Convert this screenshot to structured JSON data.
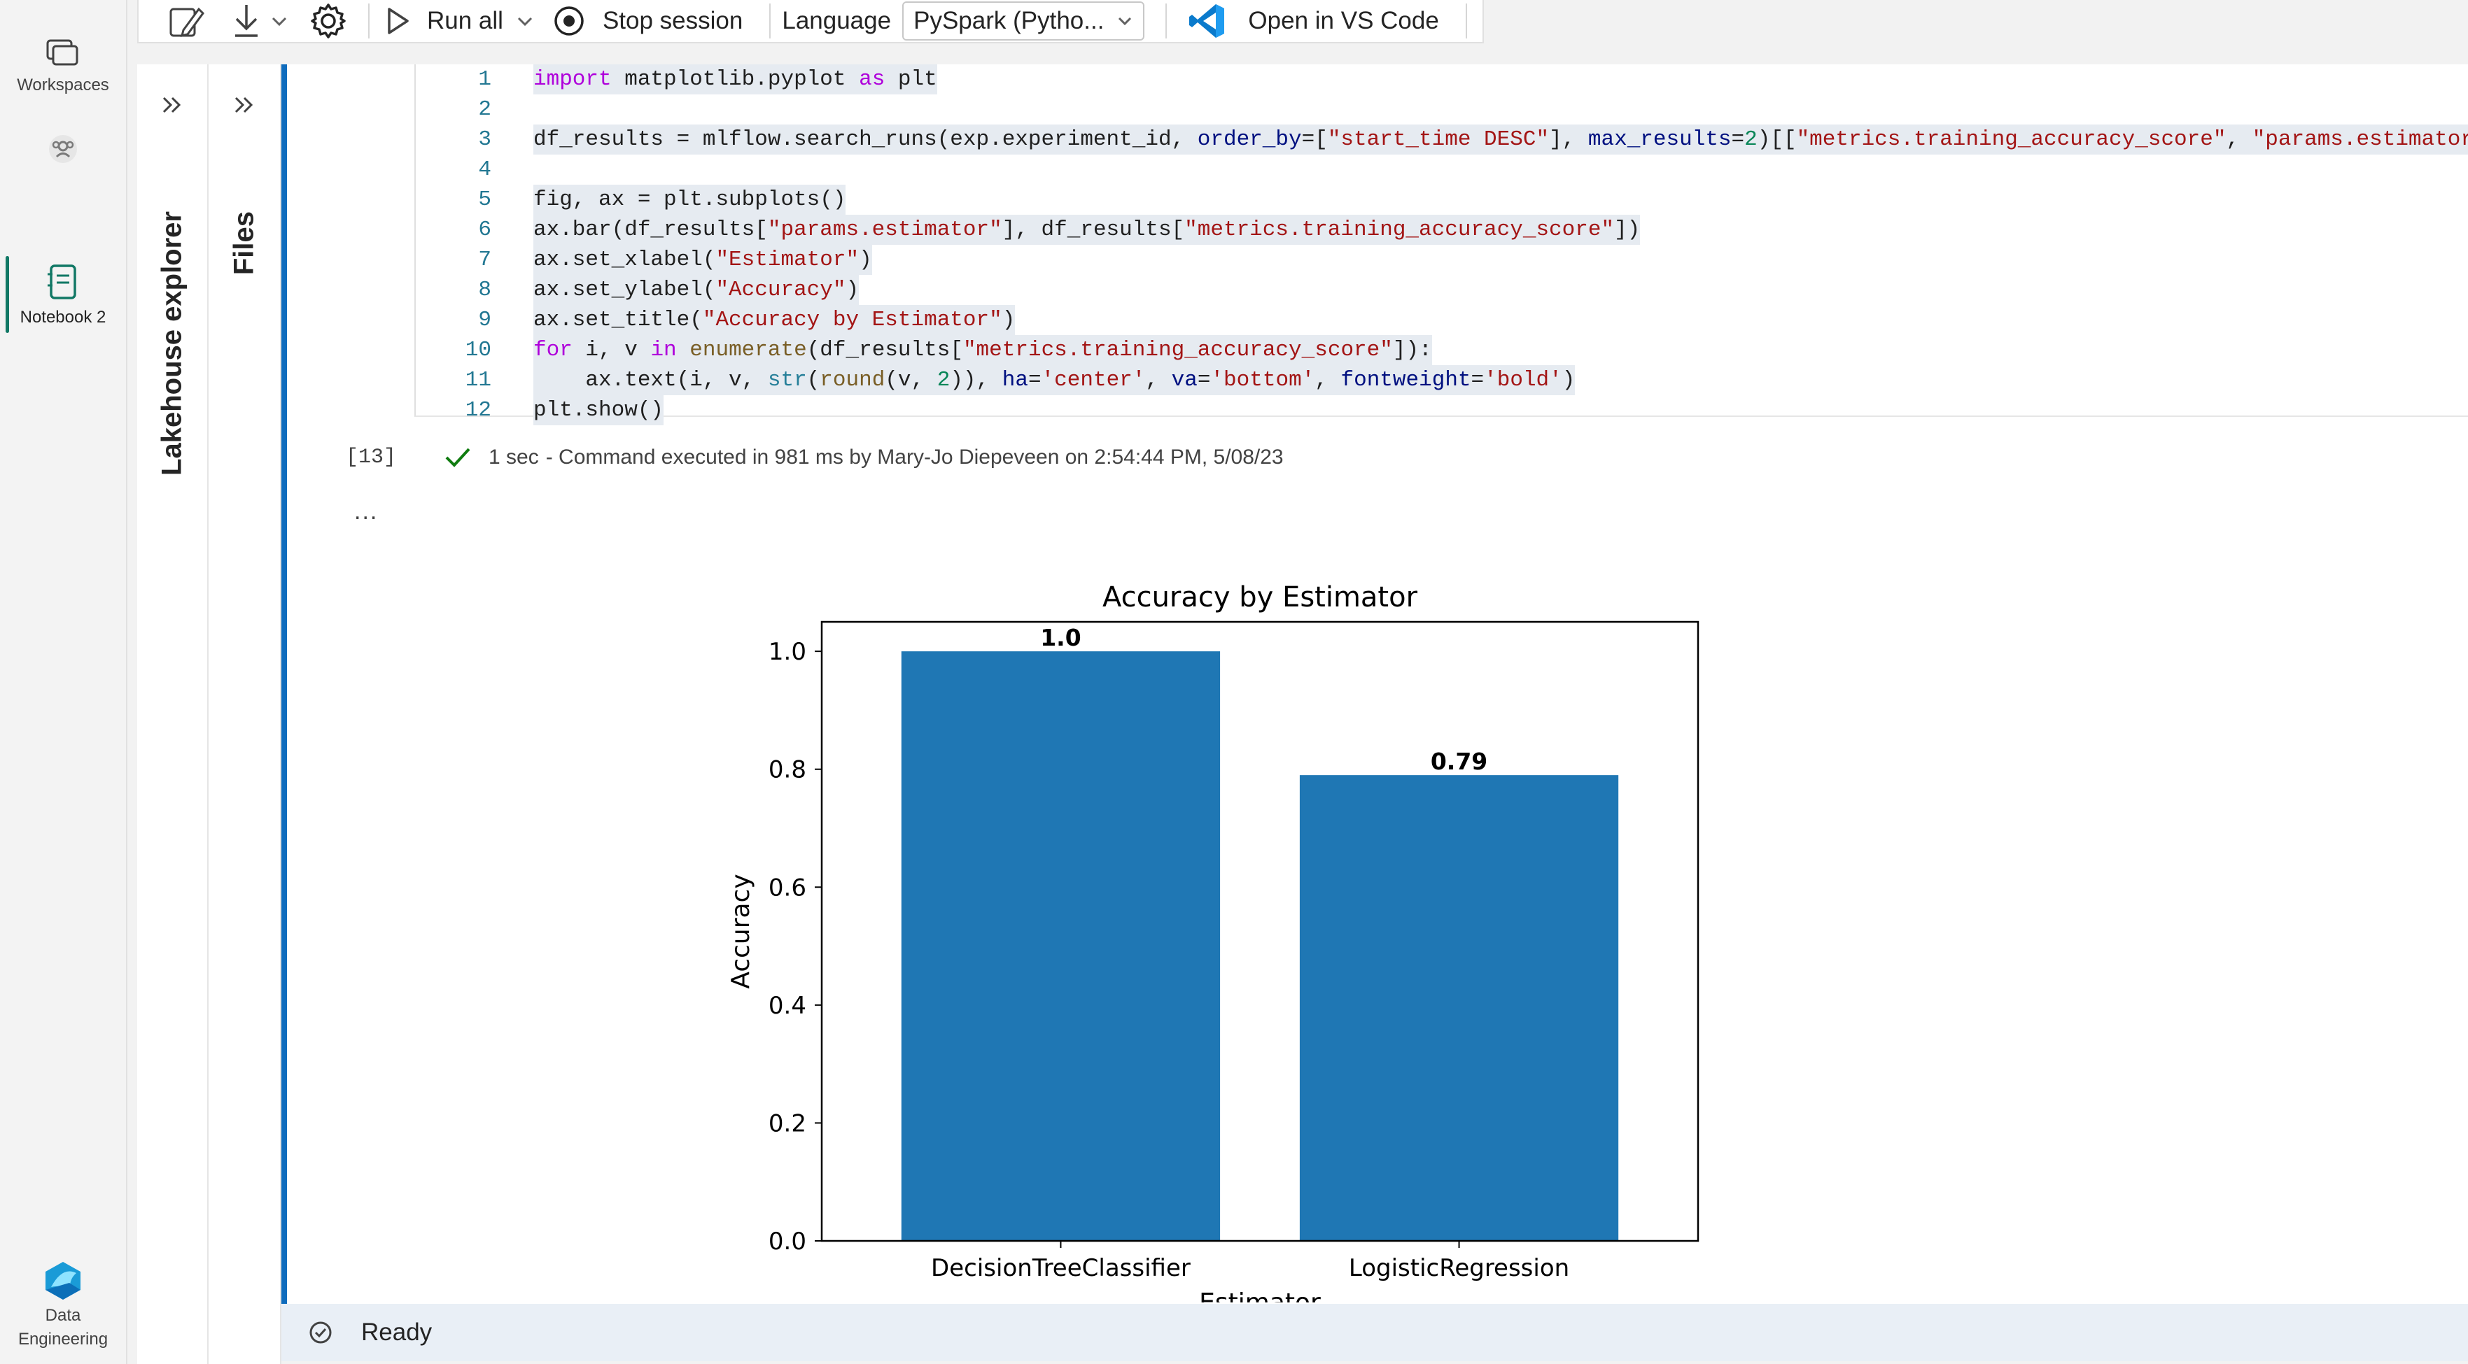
{
  "rail": {
    "workspaces_label": "Workspaces",
    "notebook_label": "Notebook 2",
    "data_engineering_label_1": "Data",
    "data_engineering_label_2": "Engineering"
  },
  "toolbar": {
    "run_all_label": "Run all",
    "stop_session_label": "Stop session",
    "language_label": "Language",
    "language_value": "PySpark (Pytho...",
    "vscode_label": "Open in VS Code"
  },
  "panels": {
    "lakehouse_label": "Lakehouse explorer",
    "files_label": "Files"
  },
  "cell": {
    "code_lines": [
      {
        "n": "1",
        "text": "import matplotlib.pyplot as plt"
      },
      {
        "n": "2",
        "text": ""
      },
      {
        "n": "3",
        "text": "df_results = mlflow.search_runs(exp.experiment_id, order_by=[\"start_time DESC\"], max_results=2)[[\"metrics.training_accuracy_score\", \"params.estimator\"]]"
      },
      {
        "n": "4",
        "text": ""
      },
      {
        "n": "5",
        "text": "fig, ax = plt.subplots()"
      },
      {
        "n": "6",
        "text": "ax.bar(df_results[\"params.estimator\"], df_results[\"metrics.training_accuracy_score\"])"
      },
      {
        "n": "7",
        "text": "ax.set_xlabel(\"Estimator\")"
      },
      {
        "n": "8",
        "text": "ax.set_ylabel(\"Accuracy\")"
      },
      {
        "n": "9",
        "text": "ax.set_title(\"Accuracy by Estimator\")"
      },
      {
        "n": "10",
        "text": "for i, v in enumerate(df_results[\"metrics.training_accuracy_score\"]):"
      },
      {
        "n": "11",
        "text": "    ax.text(i, v, str(round(v, 2)), ha='center', va='bottom', fontweight='bold')"
      },
      {
        "n": "12",
        "text": "plt.show()"
      }
    ],
    "execution_count": "[13]",
    "duration": "1 sec",
    "status_text": "- Command executed in 981 ms by Mary-Jo Diepeveen on 2:54:44 PM, 5/08/23",
    "output_menu": "..."
  },
  "chart_data": {
    "type": "bar",
    "title": "Accuracy by Estimator",
    "xlabel": "Estimator",
    "ylabel": "Accuracy",
    "categories": [
      "DecisionTreeClassifier",
      "LogisticRegression"
    ],
    "values": [
      1.0,
      0.79
    ],
    "data_labels": [
      "1.0",
      "0.79"
    ],
    "ylim": [
      0,
      1.05
    ],
    "yticks": [
      "0.0",
      "0.2",
      "0.4",
      "0.6",
      "0.8",
      "1.0"
    ],
    "bar_color": "#1f77b4",
    "grid": false
  },
  "statusbar": {
    "status_label": "Ready"
  }
}
